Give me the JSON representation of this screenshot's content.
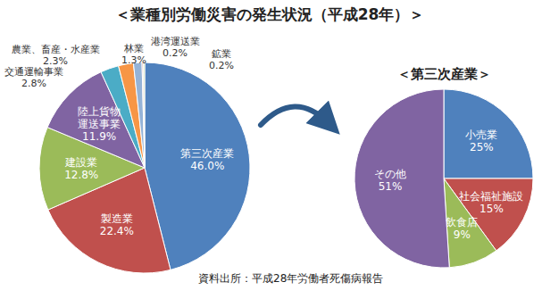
{
  "chart_data": [
    {
      "type": "pie",
      "title": "＜業種別労働災害の発生状況（平成28年）＞",
      "categories": [
        "第三次産業",
        "製造業",
        "建設業",
        "陸上貨物運送事業",
        "交通運輸事業",
        "農業、畜産・水産業",
        "林業",
        "港湾運送業",
        "鉱業"
      ],
      "values": [
        46.0,
        22.4,
        12.8,
        11.9,
        2.8,
        2.3,
        1.3,
        0.2,
        0.2
      ],
      "value_labels": [
        "46.0%",
        "22.4%",
        "12.8%",
        "11.9%",
        "2.8%",
        "2.3%",
        "1.3%",
        "0.2%",
        "0.2%"
      ],
      "colors": [
        "#4f81bd",
        "#c0504d",
        "#9bbb59",
        "#8064a2",
        "#4bacc6",
        "#f79646",
        "#95b3d7",
        "#d99694",
        "#c3d69b"
      ],
      "data_labels": true,
      "annotations": [
        "資料出所：平成28年労働者死傷病報告"
      ]
    },
    {
      "type": "pie",
      "title": "＜第三次産業＞",
      "categories": [
        "小売業",
        "社会福祉施設",
        "飲食店",
        "その他"
      ],
      "values": [
        25,
        15,
        9,
        51
      ],
      "value_labels": [
        "25%",
        "15%",
        "9%",
        "51%"
      ],
      "colors": [
        "#4f81bd",
        "#c0504d",
        "#9bbb59",
        "#8064a2"
      ],
      "data_labels": true
    }
  ]
}
